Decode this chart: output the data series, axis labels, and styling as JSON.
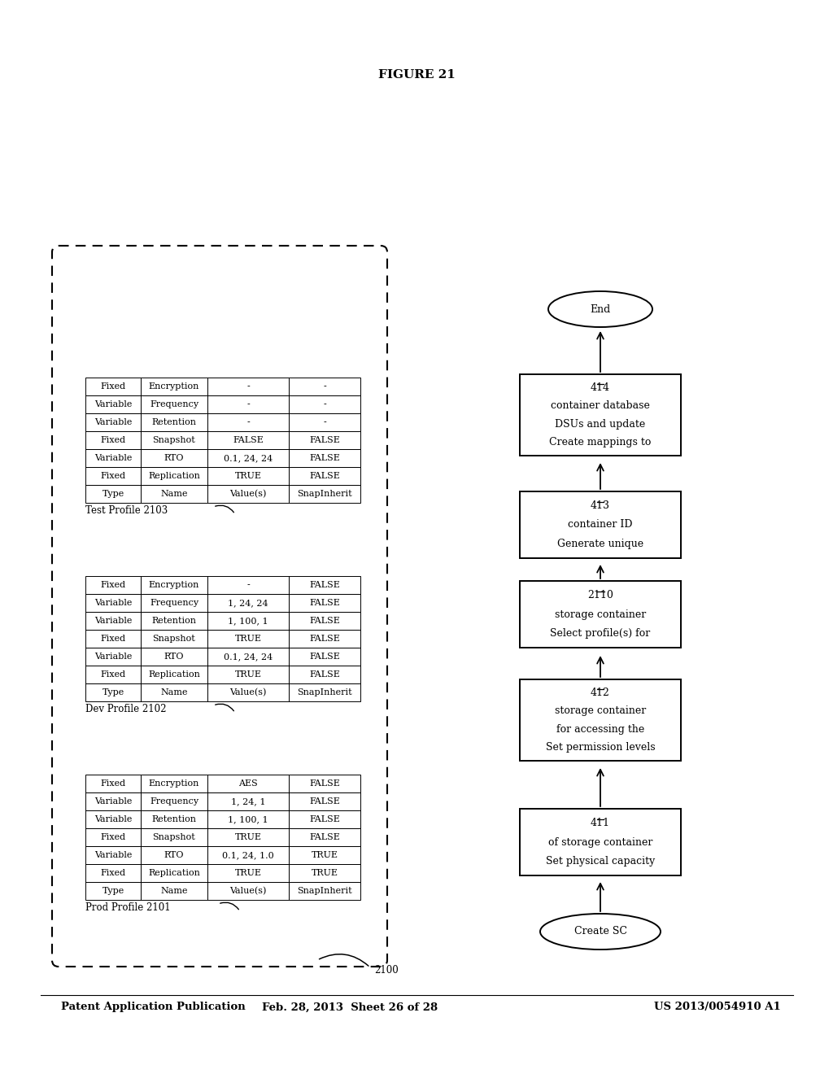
{
  "header_left": "Patent Application Publication",
  "header_mid": "Feb. 28, 2013  Sheet 26 of 28",
  "header_right": "US 2013/0054910 A1",
  "figure_label": "FIGURE 21",
  "outer_box_label": "2100",
  "prod_profile_label": "Prod Profile 2101",
  "dev_profile_label": "Dev Profile 2102",
  "test_profile_label": "Test Profile 2103",
  "prod_table": {
    "headers": [
      "Type",
      "Name",
      "Value(s)",
      "SnapInherit"
    ],
    "rows": [
      [
        "Fixed",
        "Replication",
        "TRUE",
        "TRUE"
      ],
      [
        "Variable",
        "RTO",
        "0.1, 24, 1.0",
        "TRUE"
      ],
      [
        "Fixed",
        "Snapshot",
        "TRUE",
        "FALSE"
      ],
      [
        "Variable",
        "Retention",
        "1, 100, 1",
        "FALSE"
      ],
      [
        "Variable",
        "Frequency",
        "1, 24, 1",
        "FALSE"
      ],
      [
        "Fixed",
        "Encryption",
        "AES",
        "FALSE"
      ]
    ]
  },
  "dev_table": {
    "headers": [
      "Type",
      "Name",
      "Value(s)",
      "SnapInherit"
    ],
    "rows": [
      [
        "Fixed",
        "Replication",
        "TRUE",
        "FALSE"
      ],
      [
        "Variable",
        "RTO",
        "0.1, 24, 24",
        "FALSE"
      ],
      [
        "Fixed",
        "Snapshot",
        "TRUE",
        "FALSE"
      ],
      [
        "Variable",
        "Retention",
        "1, 100, 1",
        "FALSE"
      ],
      [
        "Variable",
        "Frequency",
        "1, 24, 24",
        "FALSE"
      ],
      [
        "Fixed",
        "Encryption",
        "-",
        "FALSE"
      ]
    ]
  },
  "test_table": {
    "headers": [
      "Type",
      "Name",
      "Value(s)",
      "SnapInherit"
    ],
    "rows": [
      [
        "Fixed",
        "Replication",
        "TRUE",
        "FALSE"
      ],
      [
        "Variable",
        "RTO",
        "0.1, 24, 24",
        "FALSE"
      ],
      [
        "Fixed",
        "Snapshot",
        "FALSE",
        "FALSE"
      ],
      [
        "Variable",
        "Retention",
        "-",
        "-"
      ],
      [
        "Variable",
        "Frequency",
        "-",
        "-"
      ],
      [
        "Fixed",
        "Encryption",
        "-",
        "-"
      ]
    ]
  },
  "bg_color": "#ffffff"
}
